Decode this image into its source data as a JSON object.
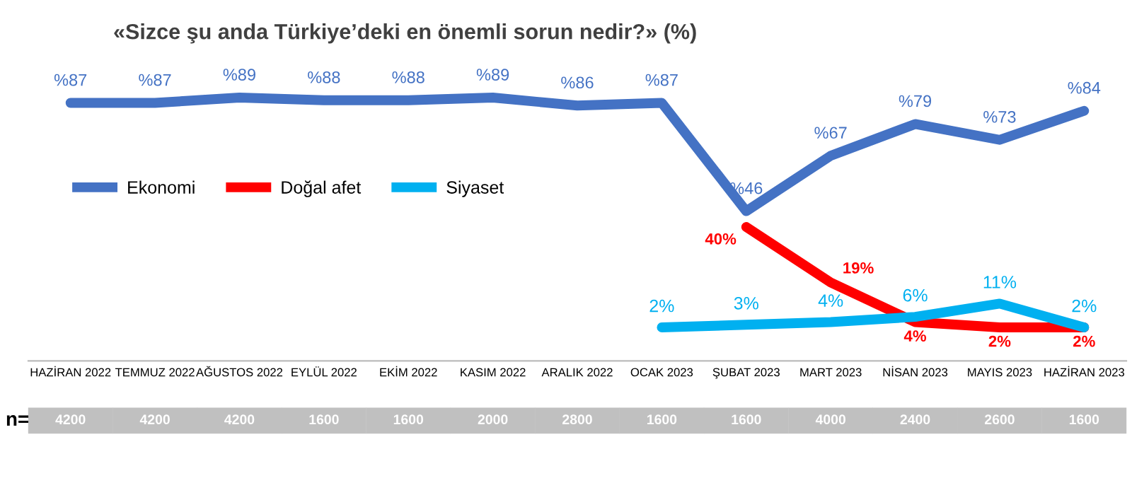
{
  "chart_data": {
    "type": "line",
    "title": "«Sizce şu anda Türkiye’deki en önemli sorun nedir?» (%)",
    "categories": [
      "HAZİRAN 2022",
      "TEMMUZ 2022",
      "AĞUSTOS 2022",
      "EYLÜL 2022",
      "EKİM 2022",
      "KASIM 2022",
      "ARALIK 2022",
      "OCAK 2023",
      "ŞUBAT 2023",
      "MART 2023",
      "NİSAN 2023",
      "MAYIS 2023",
      "HAZİRAN 2023"
    ],
    "series": [
      {
        "name": "Ekonomi",
        "color": "#4472c4",
        "values": [
          87,
          87,
          89,
          88,
          88,
          89,
          86,
          87,
          46,
          67,
          79,
          73,
          84
        ],
        "value_labels": [
          "%87",
          "%87",
          "%89",
          "%88",
          "%88",
          "%89",
          "%86",
          "%87",
          "%46",
          "%67",
          "%79",
          "%73",
          "%84"
        ]
      },
      {
        "name": "Doğal afet",
        "color": "#ff0000",
        "values": [
          null,
          null,
          null,
          null,
          null,
          null,
          null,
          null,
          40,
          19,
          4,
          2,
          2
        ],
        "value_labels": [
          null,
          null,
          null,
          null,
          null,
          null,
          null,
          null,
          "40%",
          "19%",
          "4%",
          "2%",
          "2%"
        ]
      },
      {
        "name": "Siyaset",
        "color": "#00b0f0",
        "values": [
          null,
          null,
          null,
          null,
          null,
          null,
          null,
          2,
          3,
          4,
          6,
          11,
          2
        ],
        "value_labels": [
          null,
          null,
          null,
          null,
          null,
          null,
          null,
          "2%",
          "3%",
          "4%",
          "6%",
          "11%",
          "2%"
        ]
      }
    ],
    "legend": "left",
    "annotations": [
      "n=",
      "4200",
      "4200",
      "4200",
      "1600",
      "1600",
      "2000",
      "2800",
      "1600",
      "1600",
      "4000",
      "2400",
      "2600",
      "1600"
    ]
  }
}
